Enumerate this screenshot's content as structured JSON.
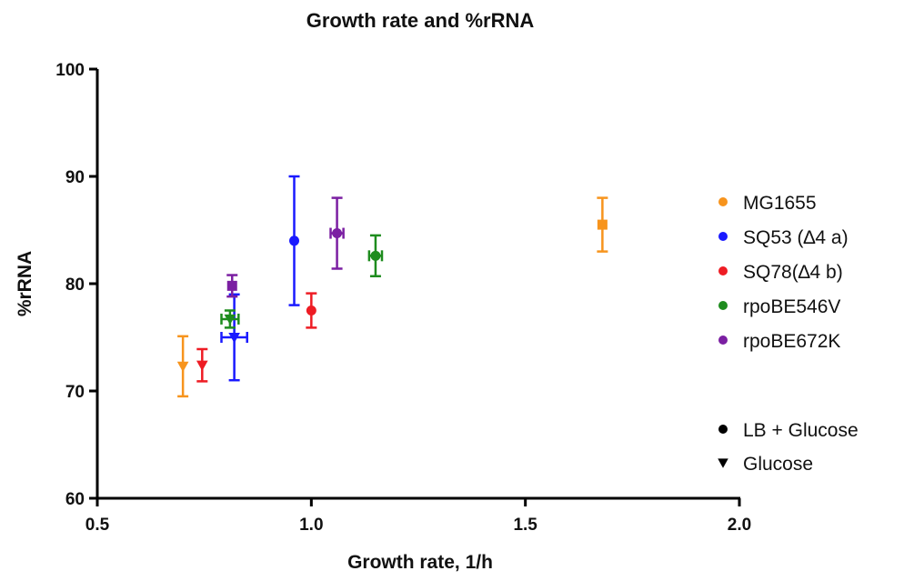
{
  "chart_data": {
    "type": "scatter",
    "title": "Growth rate and %rRNA",
    "xlabel": "Growth rate, 1/h",
    "ylabel": "%rRNA",
    "xlim": [
      0.5,
      2.0
    ],
    "ylim": [
      60,
      100
    ],
    "x_ticks": [
      "0.5",
      "1.0",
      "1.5",
      "2.0"
    ],
    "y_ticks": [
      "60",
      "70",
      "80",
      "90",
      "100"
    ],
    "grid": false,
    "legend_position": "right",
    "series": [
      {
        "name": "MG1655",
        "color": "#f7941d",
        "points": [
          {
            "condition": "LB + Glucose",
            "marker": "square",
            "x": 1.68,
            "y": 85.5,
            "y_err": 2.5,
            "x_err": 0.0
          },
          {
            "condition": "Glucose",
            "marker": "triangle-down",
            "x": 0.7,
            "y": 72.3,
            "y_err": 2.8,
            "x_err": 0.0
          }
        ]
      },
      {
        "name": "SQ53 (∆4 a)",
        "color": "#1a1aff",
        "points": [
          {
            "condition": "LB + Glucose",
            "marker": "circle",
            "x": 0.96,
            "y": 84.0,
            "y_err": 6.0,
            "x_err": 0.0
          },
          {
            "condition": "Glucose",
            "marker": "triangle-down",
            "x": 0.82,
            "y": 75.0,
            "y_err": 4.0,
            "x_err": 0.03
          }
        ]
      },
      {
        "name": "SQ78(∆4 b)",
        "color": "#ee1c24",
        "points": [
          {
            "condition": "LB + Glucose",
            "marker": "circle",
            "x": 1.0,
            "y": 77.5,
            "y_err": 1.6,
            "x_err": 0.0
          },
          {
            "condition": "Glucose",
            "marker": "triangle-down",
            "x": 0.745,
            "y": 72.4,
            "y_err": 1.5,
            "x_err": 0.0
          }
        ]
      },
      {
        "name": "rpoBE546V",
        "color": "#1e8c1e",
        "points": [
          {
            "condition": "LB + Glucose",
            "marker": "circle",
            "x": 1.15,
            "y": 82.6,
            "y_err": 1.9,
            "x_err": 0.015
          },
          {
            "condition": "Glucose",
            "marker": "triangle-down",
            "x": 0.81,
            "y": 76.7,
            "y_err": 0.8,
            "x_err": 0.02
          }
        ]
      },
      {
        "name": "rpoBE672K",
        "color": "#7b1fa2",
        "points": [
          {
            "condition": "LB + Glucose",
            "marker": "circle",
            "x": 1.06,
            "y": 84.7,
            "y_err": 3.3,
            "x_err": 0.015
          },
          {
            "condition": "Glucose",
            "marker": "square",
            "x": 0.815,
            "y": 79.8,
            "y_err": 1.0,
            "x_err": 0.0
          }
        ]
      }
    ],
    "marker_legend": [
      {
        "label": "LB + Glucose",
        "marker": "circle"
      },
      {
        "label": "Glucose",
        "marker": "triangle-down"
      }
    ]
  }
}
